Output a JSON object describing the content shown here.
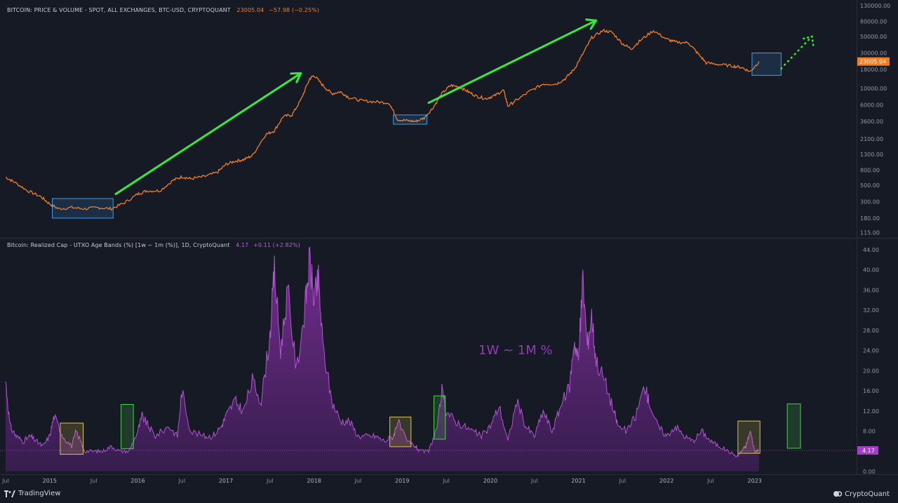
{
  "header_top": {
    "title": "BITCOIN: PRICE & VOLUME - SPOT, ALL EXCHANGES, BTC-USD, CRYPTOQUANT",
    "value": "23005.04",
    "change": "−57.98 (−0.25%)"
  },
  "header_bottom": {
    "title": "Bitcoin: Realized Cap - UTXO Age Bands (%) [1w ~ 1m (%)], 1D, CryptoQuant",
    "value": "4.17",
    "change": "+0.11 (+2.82%)"
  },
  "annotation_text": "1W ~ 1M %",
  "footer": {
    "left": "TradingView",
    "right": "CryptoQuant"
  },
  "colors": {
    "background": "#161a25",
    "price_line": "#f57c22",
    "band_fill": "#6f2f86",
    "band_line": "#b055d0",
    "arrow": "#39e83f",
    "box_blue": "#3aa0f0",
    "box_yellow": "#d8c64a",
    "box_green": "#4fce4f"
  },
  "chart_data": [
    {
      "type": "line",
      "title": "BITCOIN: PRICE & VOLUME - SPOT, ALL EXCHANGES, BTC-USD, CRYPTOQUANT",
      "yscale": "log",
      "ylim": [
        100,
        130000
      ],
      "y_ticks": [
        "130000.00",
        "80000.00",
        "50000.00",
        "30000.00",
        "18000.00",
        "10000.00",
        "6000.00",
        "3600.00",
        "2100.00",
        "1300.00",
        "800.00",
        "500.00",
        "300.00",
        "180.00",
        "115.00"
      ],
      "last_value_label": "23005.04",
      "x_ticks": [
        "Jul",
        "2015",
        "Jul",
        "2016",
        "Jul",
        "2017",
        "Jul",
        "2018",
        "Jul",
        "2019",
        "Jul",
        "2020",
        "Jul",
        "2021",
        "Jul",
        "2022",
        "Jul",
        "2023"
      ],
      "x": [
        2014.5,
        2014.6,
        2014.75,
        2014.9,
        2015.0,
        2015.1,
        2015.25,
        2015.4,
        2015.55,
        2015.7,
        2015.85,
        2016.0,
        2016.1,
        2016.25,
        2016.4,
        2016.5,
        2016.6,
        2016.75,
        2016.9,
        2017.0,
        2017.1,
        2017.2,
        2017.3,
        2017.45,
        2017.55,
        2017.65,
        2017.75,
        2017.85,
        2017.95,
        2018.0,
        2018.1,
        2018.2,
        2018.3,
        2018.4,
        2018.55,
        2018.7,
        2018.85,
        2018.95,
        2019.05,
        2019.15,
        2019.25,
        2019.35,
        2019.45,
        2019.55,
        2019.65,
        2019.75,
        2019.85,
        2019.95,
        2020.05,
        2020.15,
        2020.2,
        2020.3,
        2020.45,
        2020.6,
        2020.75,
        2020.85,
        2020.95,
        2021.05,
        2021.15,
        2021.28,
        2021.38,
        2021.5,
        2021.6,
        2021.7,
        2021.85,
        2022.0,
        2022.1,
        2022.25,
        2022.35,
        2022.45,
        2022.6,
        2022.75,
        2022.85,
        2022.95,
        2023.05
      ],
      "series": [
        {
          "values": [
            640,
            550,
            420,
            350,
            280,
            240,
            250,
            240,
            250,
            240,
            290,
            380,
            420,
            420,
            580,
            650,
            610,
            650,
            740,
            950,
            1050,
            1100,
            1250,
            2400,
            2700,
            4200,
            4400,
            7000,
            13500,
            15000,
            11000,
            8500,
            9000,
            7500,
            6800,
            6600,
            6400,
            3800,
            3700,
            3600,
            4000,
            5500,
            8500,
            11000,
            10500,
            9000,
            7800,
            7300,
            8000,
            9500,
            5800,
            7000,
            9200,
            11500,
            11500,
            13500,
            18000,
            29000,
            48000,
            60000,
            57000,
            40000,
            34000,
            44000,
            60000,
            46000,
            42000,
            41000,
            30000,
            22000,
            21000,
            20000,
            19200,
            16800,
            23005
          ]
        }
      ],
      "annotations": [
        "green arrows 2015→2018, 2019→2021",
        "blue highlight boxes at cycle lows",
        "dotted green projection arrow"
      ]
    },
    {
      "type": "area",
      "title": "Bitcoin: Realized Cap - UTXO Age Bands (%) [1w ~ 1m (%)], 1D, CryptoQuant",
      "ylim": [
        0,
        44
      ],
      "y_ticks": [
        "44.00",
        "40.00",
        "36.00",
        "32.00",
        "28.00",
        "24.00",
        "20.00",
        "16.00",
        "12.00",
        "8.00",
        "4.00",
        "0.00"
      ],
      "last_value_label": "4.17",
      "x_ticks": [
        "Jul",
        "2015",
        "Jul",
        "2016",
        "Jul",
        "2017",
        "Jul",
        "2018",
        "Jul",
        "2019",
        "Jul",
        "2020",
        "Jul",
        "2021",
        "Jul",
        "2022",
        "Jul",
        "2023"
      ],
      "x": [
        2014.5,
        2014.55,
        2014.62,
        2014.7,
        2014.78,
        2014.85,
        2014.92,
        2015.0,
        2015.05,
        2015.15,
        2015.25,
        2015.3,
        2015.4,
        2015.5,
        2015.6,
        2015.7,
        2015.8,
        2015.9,
        2016.0,
        2016.05,
        2016.12,
        2016.2,
        2016.35,
        2016.45,
        2016.5,
        2016.6,
        2016.75,
        2016.85,
        2016.95,
        2017.0,
        2017.1,
        2017.2,
        2017.3,
        2017.4,
        2017.5,
        2017.55,
        2017.62,
        2017.7,
        2017.8,
        2017.9,
        2017.95,
        2018.0,
        2018.05,
        2018.1,
        2018.2,
        2018.3,
        2018.4,
        2018.5,
        2018.6,
        2018.7,
        2018.8,
        2018.9,
        2018.95,
        2019.05,
        2019.15,
        2019.2,
        2019.3,
        2019.4,
        2019.45,
        2019.5,
        2019.6,
        2019.7,
        2019.8,
        2019.9,
        2020.0,
        2020.1,
        2020.2,
        2020.3,
        2020.4,
        2020.5,
        2020.6,
        2020.7,
        2020.8,
        2020.9,
        2020.95,
        2021.0,
        2021.05,
        2021.1,
        2021.15,
        2021.2,
        2021.3,
        2021.4,
        2021.45,
        2021.55,
        2021.65,
        2021.75,
        2021.8,
        2021.9,
        2022.0,
        2022.1,
        2022.2,
        2022.3,
        2022.4,
        2022.5,
        2022.6,
        2022.7,
        2022.8,
        2022.85,
        2022.9,
        2022.95,
        2023.0,
        2023.05
      ],
      "series": [
        {
          "name": "1w ~ 1m (%)",
          "values": [
            18,
            9,
            7,
            6,
            7,
            6,
            5,
            7,
            11,
            7,
            5,
            8,
            4,
            4,
            4,
            5,
            4,
            4,
            8,
            11,
            9,
            7,
            9,
            7,
            16,
            8,
            7,
            7,
            9,
            11,
            14,
            12,
            18,
            14,
            27,
            40,
            24,
            36,
            20,
            33,
            42,
            34,
            38,
            25,
            14,
            10,
            10,
            7,
            7,
            7,
            6,
            7,
            10,
            6,
            5,
            4,
            4,
            9,
            16,
            12,
            10,
            9,
            8,
            7,
            9,
            13,
            6,
            14,
            9,
            7,
            12,
            8,
            13,
            17,
            26,
            22,
            38,
            25,
            31,
            22,
            18,
            12,
            9,
            8,
            11,
            17,
            14,
            9,
            7,
            9,
            7,
            6,
            8,
            6,
            5,
            4,
            3,
            4,
            5,
            8,
            4,
            4.17
          ]
        }
      ],
      "annotation_text": "1W ~ 1M %",
      "annotations": [
        "yellow boxes at local lows",
        "green boxes after lows"
      ]
    }
  ]
}
